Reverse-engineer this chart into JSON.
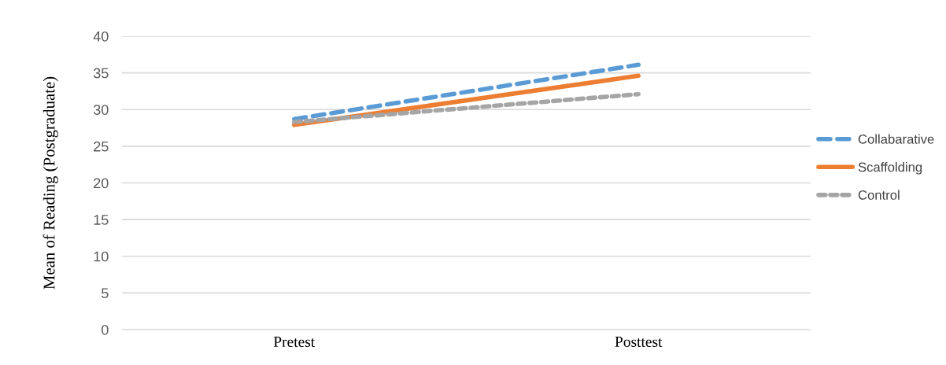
{
  "chart_data": {
    "type": "line",
    "ylabel": "Mean of Reading (Postgraduate)",
    "categories": [
      "Pretest",
      "Posttest"
    ],
    "series": [
      {
        "name": "Collabarative",
        "color": "#5b9bd5",
        "values": [
          28.7,
          36.1
        ],
        "line_style": "dashed"
      },
      {
        "name": "Scaffolding",
        "color": "#ed7d31",
        "values": [
          27.9,
          34.6
        ],
        "line_style": "solid"
      },
      {
        "name": "Control",
        "color": "#a5a5a5",
        "values": [
          28.3,
          32.1
        ],
        "line_style": "dotted"
      }
    ],
    "ylim": [
      0,
      40
    ],
    "yticks": [
      0,
      5,
      10,
      15,
      20,
      25,
      30,
      35,
      40
    ],
    "grid": "y",
    "legend": "right",
    "marker": "none"
  }
}
